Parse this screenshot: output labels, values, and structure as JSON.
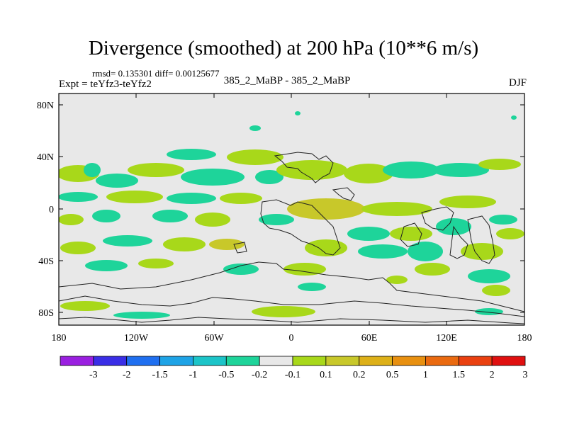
{
  "title": "Divergence (smoothed) at 200 hPa (10**6 m/s)",
  "stats": "rmsd= 0.135301 diff= 0.00125677",
  "expt": "Expt = teYfz3-teYfz2",
  "experiment_name": "385_2_MaBP - 385_2_MaBP",
  "season": "DJF",
  "map": {
    "y_ticks": [
      "80N",
      "40N",
      "0",
      "40S",
      "80S"
    ],
    "x_ticks": [
      "180",
      "120W",
      "60W",
      "0",
      "60E",
      "120E",
      "180"
    ],
    "background_color": "#e8e8e8"
  },
  "colorbar": {
    "colors": [
      "#9a1fe0",
      "#3a2ee6",
      "#1f6ff0",
      "#1ea3e6",
      "#1cc4c8",
      "#1ed49a",
      "#e8e8e8",
      "#a8d81a",
      "#c8c82a",
      "#ddb018",
      "#e89010",
      "#ea6a10",
      "#ea4010",
      "#e01010"
    ],
    "labels": [
      "-3",
      "-2",
      "-1.5",
      "-1",
      "-0.5",
      "-0.2",
      "-0.1",
      "0.1",
      "0.2",
      "0.5",
      "1",
      "1.5",
      "2",
      "3"
    ]
  }
}
